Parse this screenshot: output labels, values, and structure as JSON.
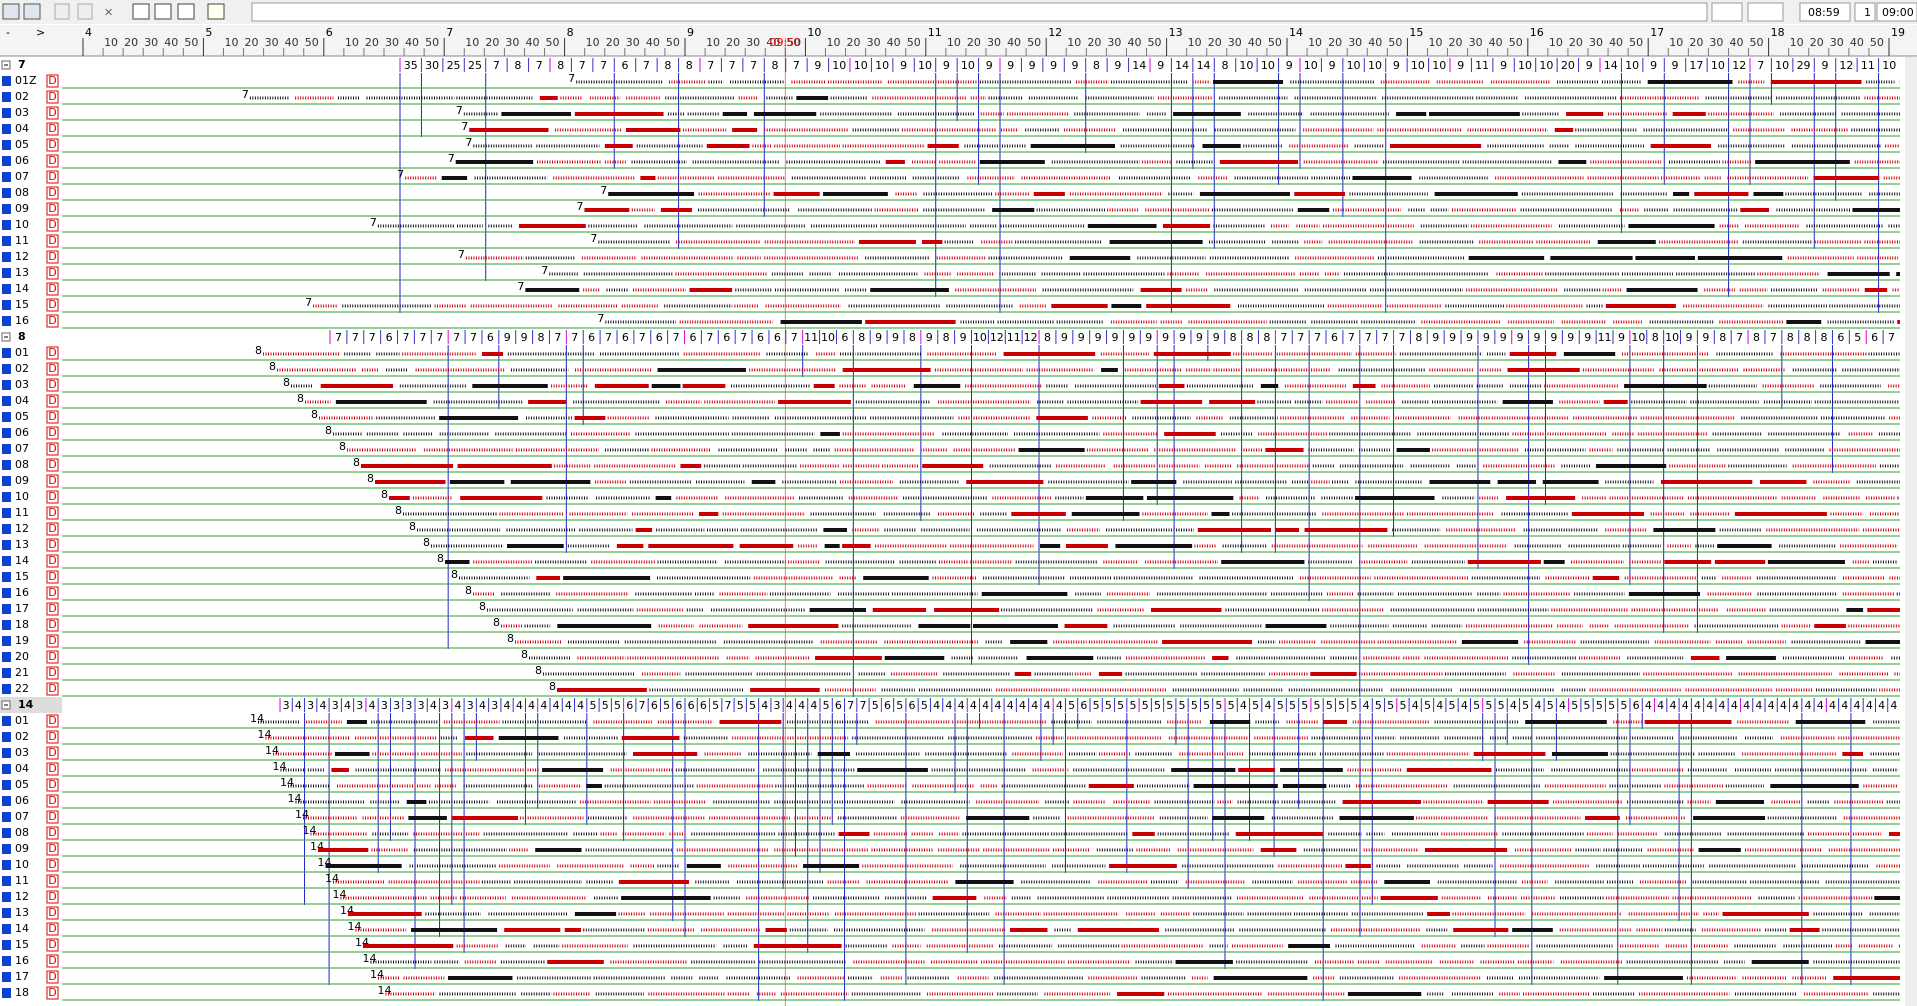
{
  "toolbar": {
    "time_left": "08:59",
    "counter": "1",
    "time_right": "09:00"
  },
  "ruler": {
    "nav_back": "-",
    "nav_fwd": ">",
    "hours": [
      4,
      5,
      6,
      7,
      8,
      9,
      10,
      11,
      12,
      13,
      14,
      15,
      16,
      17,
      18,
      19
    ],
    "minutes": [
      10,
      20,
      30,
      40,
      50
    ],
    "current_time": "09:50",
    "current_hour": 9.8333
  },
  "row_flag": "D",
  "groups": [
    {
      "name": "7",
      "rows": [
        "01Z",
        "02",
        "03",
        "04",
        "05",
        "06",
        "07",
        "08",
        "09",
        "10",
        "11",
        "12",
        "13",
        "14",
        "15",
        "16"
      ],
      "headways": [
        "35",
        "30",
        "25",
        "25",
        "7",
        "8",
        "7",
        "8",
        "7",
        "7",
        "6",
        "7",
        "8",
        "8",
        "7",
        "7",
        "7",
        "8",
        "7",
        "9",
        "10",
        "10",
        "10",
        "9",
        "10",
        "9",
        "10",
        "9",
        "9",
        "9",
        "9",
        "9",
        "8",
        "9",
        "14",
        "9",
        "14",
        "14",
        "8",
        "10",
        "10",
        "9",
        "10",
        "9",
        "10",
        "10",
        "9",
        "10",
        "10",
        "9",
        "11",
        "9",
        "10",
        "10",
        "20",
        "9",
        "14",
        "10",
        "9",
        "9",
        "17",
        "10",
        "12",
        "7",
        "10",
        "29",
        "9",
        "12",
        "11",
        "10"
      ]
    },
    {
      "name": "8",
      "rows": [
        "01",
        "02",
        "03",
        "04",
        "05",
        "06",
        "07",
        "08",
        "09",
        "10",
        "11",
        "12",
        "13",
        "14",
        "15",
        "16",
        "17",
        "18",
        "19",
        "20",
        "21",
        "22"
      ],
      "headways": [
        "7",
        "7",
        "7",
        "6",
        "7",
        "7",
        "7",
        "7",
        "7",
        "6",
        "9",
        "9",
        "8",
        "7",
        "7",
        "6",
        "7",
        "6",
        "7",
        "6",
        "7",
        "6",
        "7",
        "6",
        "7",
        "6",
        "6",
        "7",
        "11",
        "10",
        "6",
        "8",
        "9",
        "9",
        "8",
        "9",
        "8",
        "9",
        "10",
        "12",
        "11",
        "12",
        "8",
        "9",
        "9",
        "9",
        "9",
        "9",
        "9",
        "9",
        "9",
        "9",
        "9",
        "8",
        "8",
        "8",
        "7",
        "7",
        "7",
        "6",
        "7",
        "7",
        "7",
        "7",
        "8",
        "9",
        "9",
        "9",
        "9",
        "9",
        "9",
        "9",
        "9",
        "9",
        "9",
        "11",
        "9",
        "10",
        "8",
        "10",
        "9",
        "9",
        "8",
        "7",
        "8",
        "7",
        "8",
        "8",
        "8",
        "6",
        "5",
        "6",
        "7"
      ]
    },
    {
      "name": "14",
      "rows": [
        "01",
        "02",
        "03",
        "04",
        "05",
        "06",
        "07",
        "08",
        "09",
        "10",
        "11",
        "12",
        "13",
        "14",
        "15",
        "16",
        "17",
        "18"
      ],
      "headways": [
        "3",
        "4",
        "3",
        "4",
        "3",
        "4",
        "3",
        "4",
        "3",
        "3",
        "3",
        "3",
        "4",
        "3",
        "4",
        "3",
        "4",
        "3",
        "4",
        "4",
        "4",
        "4",
        "4",
        "4",
        "4",
        "5",
        "5",
        "5",
        "6",
        "7",
        "6",
        "5",
        "6",
        "6",
        "6",
        "5",
        "7",
        "5",
        "5",
        "4",
        "3",
        "4",
        "4",
        "4",
        "5",
        "6",
        "7",
        "7",
        "5",
        "6",
        "5",
        "6",
        "5",
        "4",
        "4",
        "4",
        "4",
        "4",
        "4",
        "4",
        "4",
        "4",
        "4",
        "4",
        "5",
        "6",
        "5",
        "5",
        "5",
        "5",
        "5",
        "5",
        "5",
        "5",
        "5",
        "5",
        "5",
        "5",
        "4",
        "5",
        "4",
        "5",
        "5",
        "5",
        "5",
        "5",
        "5",
        "5",
        "4",
        "5",
        "5",
        "5",
        "4",
        "5",
        "4",
        "5",
        "4",
        "5",
        "5",
        "5",
        "4",
        "5",
        "4",
        "5",
        "4",
        "5",
        "5",
        "5",
        "5",
        "5",
        "6",
        "4",
        "4",
        "4",
        "4",
        "4",
        "4",
        "4",
        "4",
        "4",
        "4",
        "4",
        "4",
        "4",
        "4",
        "4",
        "4",
        "4",
        "4",
        "4",
        "4",
        "4"
      ]
    }
  ]
}
